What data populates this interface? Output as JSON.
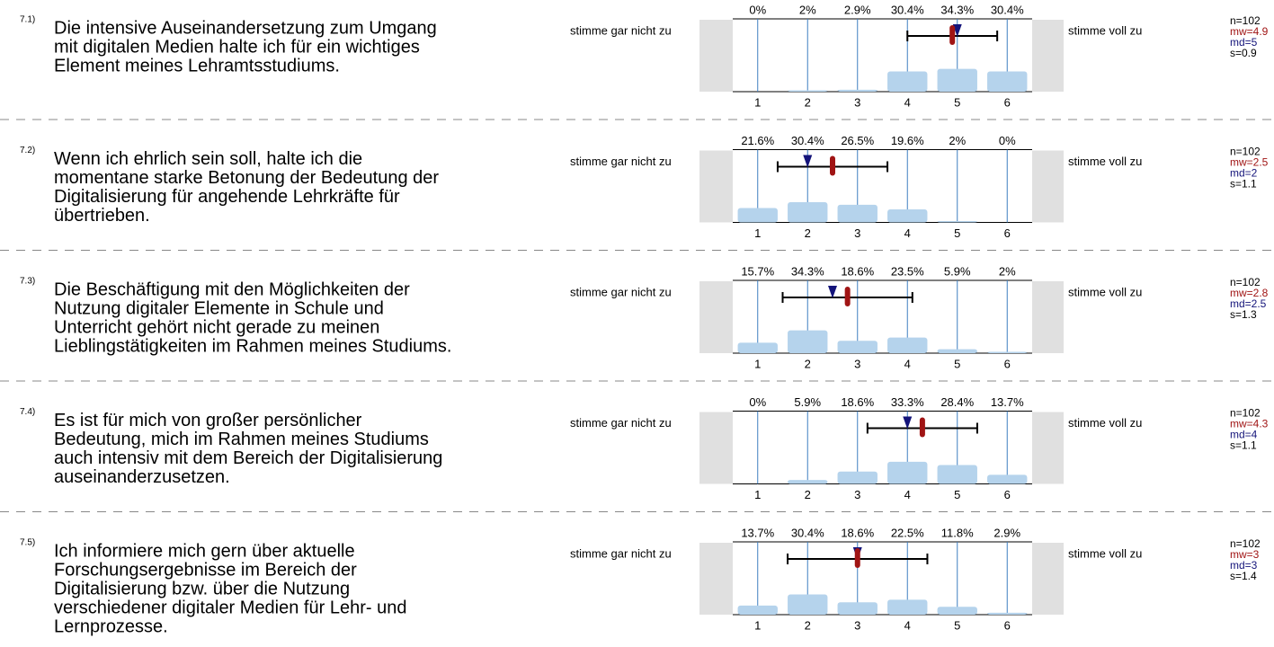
{
  "chart_data": [
    {
      "type": "bar",
      "number": "7.1)",
      "question": [
        "Die intensive Auseinandersetzung zum Umgang",
        "mit digitalen Medien halte ich für ein wichtiges",
        "Element meines Lehramtsstudiums."
      ],
      "left_label": "stimme gar nicht zu",
      "right_label": "stimme voll zu",
      "x": [
        1,
        2,
        3,
        4,
        5,
        6
      ],
      "values": [
        0,
        2,
        2.9,
        30.4,
        34.3,
        30.4
      ],
      "value_labels": [
        "0%",
        "2%",
        "2.9%",
        "30.4%",
        "34.3%",
        "30.4%"
      ],
      "n": "n=102",
      "mean": {
        "value": 4.9,
        "label": "mw=4.9"
      },
      "median": {
        "value": 5,
        "label": "md=5"
      },
      "sd": {
        "value": 0.9,
        "label": "s=0.9"
      },
      "xlim": [
        0.5,
        6.5
      ],
      "ylim": [
        0,
        100
      ],
      "color": "#b5d3ec",
      "grid_color": "#3f7fc0",
      "mean_color": "#a01414",
      "median_color": "#14147a"
    },
    {
      "type": "bar",
      "number": "7.2)",
      "question": [
        "Wenn ich ehrlich sein soll, halte ich die",
        "momentane starke Betonung der Bedeutung der",
        "Digitalisierung für angehende Lehrkräfte für",
        "übertrieben."
      ],
      "left_label": "stimme gar nicht zu",
      "right_label": "stimme voll zu",
      "x": [
        1,
        2,
        3,
        4,
        5,
        6
      ],
      "values": [
        21.6,
        30.4,
        26.5,
        19.6,
        2,
        0
      ],
      "value_labels": [
        "21.6%",
        "30.4%",
        "26.5%",
        "19.6%",
        "2%",
        "0%"
      ],
      "n": "n=102",
      "mean": {
        "value": 2.5,
        "label": "mw=2.5"
      },
      "median": {
        "value": 2,
        "label": "md=2"
      },
      "sd": {
        "value": 1.1,
        "label": "s=1.1"
      },
      "xlim": [
        0.5,
        6.5
      ],
      "ylim": [
        0,
        100
      ],
      "color": "#b5d3ec",
      "grid_color": "#3f7fc0",
      "mean_color": "#a01414",
      "median_color": "#14147a"
    },
    {
      "type": "bar",
      "number": "7.3)",
      "question": [
        "Die Beschäftigung mit den Möglichkeiten der",
        "Nutzung digitaler Elemente in Schule und",
        "Unterricht gehört nicht gerade zu meinen",
        "Lieblingstätigkeiten im Rahmen meines Studiums."
      ],
      "left_label": "stimme gar nicht zu",
      "right_label": "stimme voll zu",
      "x": [
        1,
        2,
        3,
        4,
        5,
        6
      ],
      "values": [
        15.7,
        34.3,
        18.6,
        23.5,
        5.9,
        2
      ],
      "value_labels": [
        "15.7%",
        "34.3%",
        "18.6%",
        "23.5%",
        "5.9%",
        "2%"
      ],
      "n": "n=102",
      "mean": {
        "value": 2.8,
        "label": "mw=2.8"
      },
      "median": {
        "value": 2.5,
        "label": "md=2.5"
      },
      "sd": {
        "value": 1.3,
        "label": "s=1.3"
      },
      "xlim": [
        0.5,
        6.5
      ],
      "ylim": [
        0,
        100
      ],
      "color": "#b5d3ec",
      "grid_color": "#3f7fc0",
      "mean_color": "#a01414",
      "median_color": "#14147a"
    },
    {
      "type": "bar",
      "number": "7.4)",
      "question": [
        "Es ist für mich von großer persönlicher",
        "Bedeutung, mich im Rahmen meines Studiums",
        "auch intensiv mit dem Bereich der Digitalisierung",
        "auseinanderzusetzen."
      ],
      "left_label": "stimme gar nicht zu",
      "right_label": "stimme voll zu",
      "x": [
        1,
        2,
        3,
        4,
        5,
        6
      ],
      "values": [
        0,
        5.9,
        18.6,
        33.3,
        28.4,
        13.7
      ],
      "value_labels": [
        "0%",
        "5.9%",
        "18.6%",
        "33.3%",
        "28.4%",
        "13.7%"
      ],
      "n": "n=102",
      "mean": {
        "value": 4.3,
        "label": "mw=4.3"
      },
      "median": {
        "value": 4,
        "label": "md=4"
      },
      "sd": {
        "value": 1.1,
        "label": "s=1.1"
      },
      "xlim": [
        0.5,
        6.5
      ],
      "ylim": [
        0,
        100
      ],
      "color": "#b5d3ec",
      "grid_color": "#3f7fc0",
      "mean_color": "#a01414",
      "median_color": "#14147a"
    },
    {
      "type": "bar",
      "number": "7.5)",
      "question": [
        "Ich informiere mich gern über aktuelle",
        "Forschungsergebnisse im Bereich der",
        "Digitalisierung bzw. über die Nutzung",
        "verschiedener digitaler Medien für Lehr- und",
        "Lernprozesse."
      ],
      "left_label": "stimme gar nicht zu",
      "right_label": "stimme voll zu",
      "x": [
        1,
        2,
        3,
        4,
        5,
        6
      ],
      "values": [
        13.7,
        30.4,
        18.6,
        22.5,
        11.8,
        2.9
      ],
      "value_labels": [
        "13.7%",
        "30.4%",
        "18.6%",
        "22.5%",
        "11.8%",
        "2.9%"
      ],
      "n": "n=102",
      "mean": {
        "value": 3,
        "label": "mw=3"
      },
      "median": {
        "value": 3,
        "label": "md=3"
      },
      "sd": {
        "value": 1.4,
        "label": "s=1.4"
      },
      "xlim": [
        0.5,
        6.5
      ],
      "ylim": [
        0,
        100
      ],
      "color": "#b5d3ec",
      "grid_color": "#3f7fc0",
      "mean_color": "#a01414",
      "median_color": "#14147a"
    }
  ]
}
